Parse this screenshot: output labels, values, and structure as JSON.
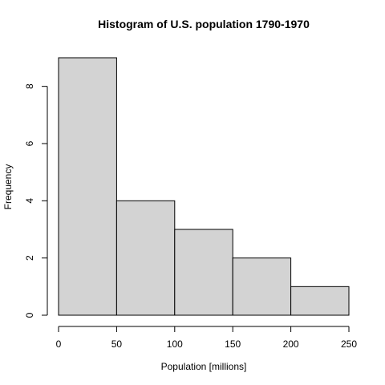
{
  "chart_data": {
    "type": "bar",
    "title": "Histogram of U.S. population 1790-1970",
    "xlabel": "Population [millions]",
    "ylabel": "Frequency",
    "bins": [
      {
        "start": 0,
        "end": 50,
        "count": 9
      },
      {
        "start": 50,
        "end": 100,
        "count": 4
      },
      {
        "start": 100,
        "end": 150,
        "count": 3
      },
      {
        "start": 150,
        "end": 200,
        "count": 2
      },
      {
        "start": 200,
        "end": 250,
        "count": 1
      }
    ],
    "xlim": [
      0,
      250
    ],
    "ylim": [
      0,
      9
    ],
    "x_ticks": [
      0,
      50,
      100,
      150,
      200,
      250
    ],
    "y_ticks": [
      0,
      2,
      4,
      6,
      8
    ],
    "bar_fill": "#d3d3d3",
    "bar_stroke": "#000000",
    "grid": false,
    "legend": "none"
  }
}
